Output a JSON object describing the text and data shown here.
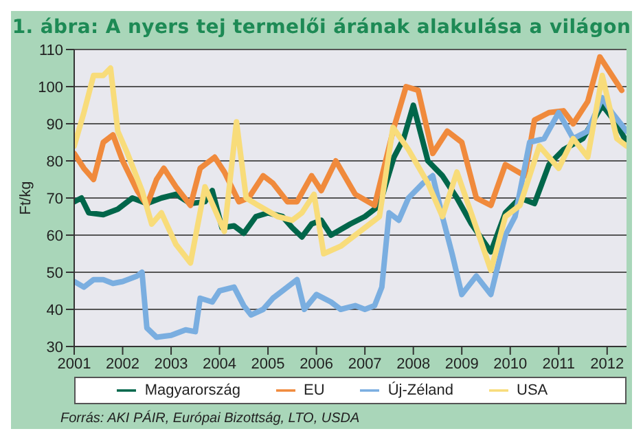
{
  "chart_data": {
    "type": "line",
    "title": "1. ábra: A nyers tej termelői árának alakulása a világon",
    "ylabel": "Ft/kg",
    "annotations": [
      "Forrás: AKI PÁIR, Európai Bizottság, LTO, USDA"
    ],
    "xlim": [
      2001,
      2012.4
    ],
    "xticks": [
      2001,
      2002,
      2003,
      2004,
      2005,
      2006,
      2007,
      2008,
      2009,
      2010,
      2011,
      2012
    ],
    "ylim": [
      30,
      110
    ],
    "yticks": [
      30,
      40,
      50,
      60,
      70,
      80,
      90,
      100,
      110
    ],
    "grid": "y",
    "legend": "bottom",
    "marker": "none",
    "line_style": "solid",
    "series": [
      {
        "name": "Magyarország",
        "color": "#00664a",
        "x": [
          2001,
          2001.15,
          2001.3,
          2001.6,
          2001.9,
          2002.2,
          2002.5,
          2002.8,
          2003.1,
          2003.4,
          2003.7,
          2003.85,
          2004.05,
          2004.3,
          2004.5,
          2004.75,
          2005,
          2005.3,
          2005.5,
          2005.7,
          2005.9,
          2006.1,
          2006.3,
          2006.7,
          2007,
          2007.3,
          2007.6,
          2007.8,
          2008,
          2008.3,
          2008.6,
          2008.9,
          2009.2,
          2009.6,
          2009.9,
          2010.2,
          2010.5,
          2010.8,
          2011.1,
          2011.5,
          2011.9,
          2012.2,
          2012.4
        ],
        "values": [
          69,
          70,
          66,
          65.5,
          67,
          70,
          68.5,
          70,
          71,
          68.5,
          69,
          72,
          62,
          62.5,
          60.5,
          65,
          66,
          65,
          62,
          59.5,
          63,
          64,
          60,
          63,
          65,
          68,
          81,
          86,
          95,
          80,
          76,
          70,
          63,
          55.5,
          66,
          70,
          68.5,
          79,
          83,
          86,
          95,
          90,
          85
        ]
      },
      {
        "name": "EU",
        "color": "#f08a3c",
        "x": [
          2001,
          2001.2,
          2001.4,
          2001.6,
          2001.8,
          2002,
          2002.3,
          2002.5,
          2002.7,
          2002.85,
          2003.1,
          2003.4,
          2003.6,
          2003.9,
          2004.1,
          2004.4,
          2004.6,
          2004.9,
          2005.1,
          2005.4,
          2005.6,
          2005.9,
          2006.1,
          2006.4,
          2006.8,
          2007.2,
          2007.6,
          2007.85,
          2008.1,
          2008.4,
          2008.7,
          2009,
          2009.3,
          2009.6,
          2009.9,
          2010.3,
          2010.5,
          2010.8,
          2011.1,
          2011.3,
          2011.6,
          2011.85,
          2012.1,
          2012.3
        ],
        "values": [
          82,
          78,
          75,
          85,
          87,
          80,
          72,
          68,
          75,
          78,
          73,
          68,
          78,
          81,
          77,
          69,
          70,
          76,
          74,
          69,
          69,
          76,
          72,
          80,
          71,
          68,
          89,
          100,
          99,
          82,
          88,
          85,
          70,
          68,
          79,
          76,
          91,
          93,
          93.5,
          90,
          96,
          108,
          103,
          99
        ]
      },
      {
        "name": "Új-Zéland",
        "color": "#7aaee0",
        "x": [
          2001,
          2001.2,
          2001.4,
          2001.6,
          2001.8,
          2002,
          2002.3,
          2002.4,
          2002.5,
          2002.7,
          2003,
          2003.3,
          2003.5,
          2003.6,
          2003.85,
          2004,
          2004.3,
          2004.5,
          2004.65,
          2004.9,
          2005.1,
          2005.3,
          2005.6,
          2005.75,
          2006,
          2006.3,
          2006.5,
          2006.8,
          2007,
          2007.2,
          2007.35,
          2007.5,
          2007.7,
          2007.9,
          2008.2,
          2008.4,
          2008.6,
          2008.8,
          2009,
          2009.3,
          2009.6,
          2009.9,
          2010.1,
          2010.4,
          2010.7,
          2011,
          2011.3,
          2011.6,
          2011.9,
          2012.1,
          2012.4
        ],
        "values": [
          47.5,
          46,
          48,
          48,
          47,
          47.5,
          49,
          50,
          35,
          32.5,
          33,
          34.5,
          34,
          43,
          42,
          45,
          46,
          41,
          38.5,
          40,
          43,
          45,
          48,
          40,
          44,
          42,
          40,
          41,
          40,
          41,
          46,
          66,
          64,
          70,
          74,
          76,
          65,
          55,
          44,
          49,
          44,
          60,
          65,
          85,
          86,
          93,
          86,
          88,
          97,
          93,
          88
        ]
      },
      {
        "name": "USA",
        "color": "#f8dc7a",
        "x": [
          2001,
          2001.2,
          2001.4,
          2001.6,
          2001.75,
          2001.9,
          2002.1,
          2002.4,
          2002.6,
          2002.8,
          2003.1,
          2003.4,
          2003.7,
          2003.9,
          2004.1,
          2004.35,
          2004.55,
          2004.8,
          2005.2,
          2005.5,
          2005.7,
          2005.95,
          2006.15,
          2006.5,
          2007,
          2007.3,
          2007.58,
          2007.9,
          2008.3,
          2008.6,
          2008.9,
          2009.3,
          2009.6,
          2009.9,
          2010.2,
          2010.6,
          2011,
          2011.3,
          2011.6,
          2011.9,
          2012.2,
          2012.4
        ],
        "values": [
          84,
          93,
          103,
          103,
          105,
          88,
          82,
          72,
          63,
          66,
          57.5,
          52.5,
          73,
          67,
          61,
          90.5,
          70,
          68,
          65,
          64,
          66,
          71,
          55,
          57,
          62,
          65,
          89,
          83,
          74,
          65,
          77,
          62,
          50.5,
          65,
          68,
          84,
          78,
          86,
          81,
          103,
          86,
          84
        ]
      }
    ]
  }
}
